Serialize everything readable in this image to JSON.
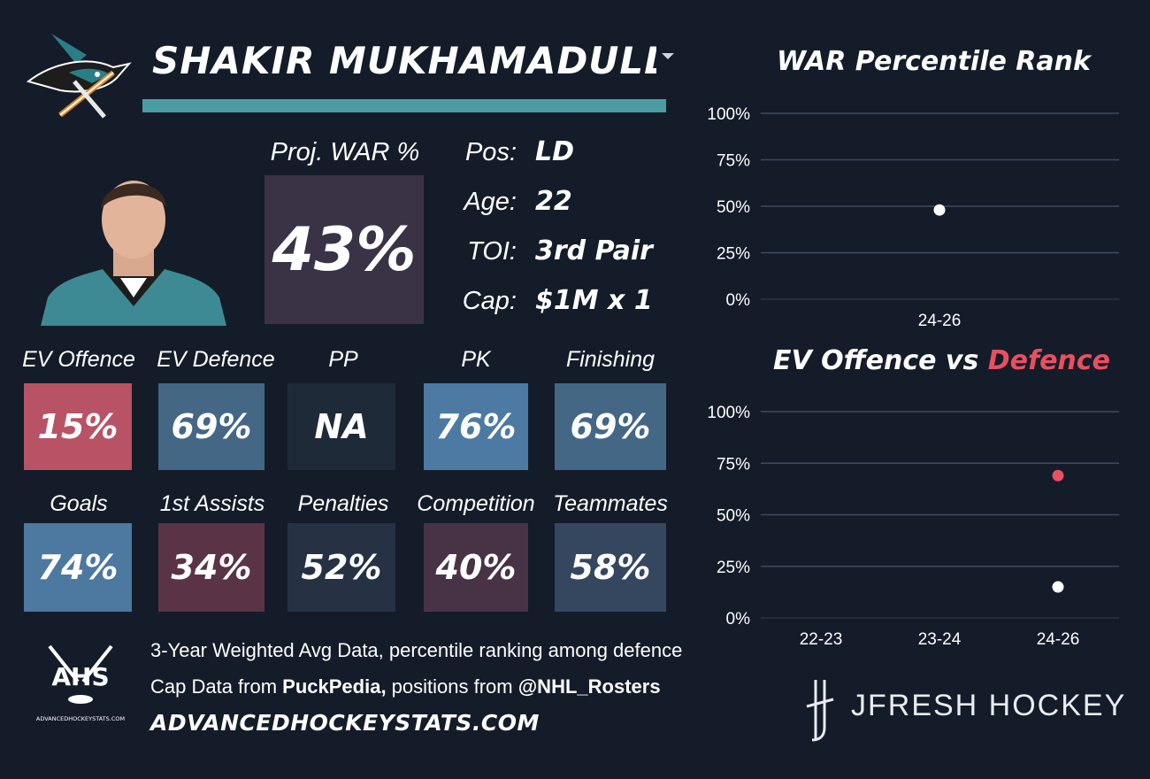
{
  "header": {
    "player_name": "SHAKIR MUKHAMADULLIN"
  },
  "projection": {
    "label": "Proj. WAR %",
    "value": "43%"
  },
  "info": [
    {
      "label": "Pos:",
      "value": "LD"
    },
    {
      "label": "Age:",
      "value": "22"
    },
    {
      "label": "TOI:",
      "value": "3rd Pair"
    },
    {
      "label": "Cap:",
      "value": "$1M x 1"
    }
  ],
  "tiles_row1": [
    {
      "label": "EV Offence",
      "value": "15%",
      "color": "#b85366"
    },
    {
      "label": "EV Defence",
      "value": "69%",
      "color": "#436785"
    },
    {
      "label": "PP",
      "value": "NA",
      "color": "#1f2a38"
    },
    {
      "label": "PK",
      "value": "76%",
      "color": "#4d7aa3"
    },
    {
      "label": "Finishing",
      "value": "69%",
      "color": "#436785"
    }
  ],
  "tiles_row2": [
    {
      "label": "Goals",
      "value": "74%",
      "color": "#4d78a0"
    },
    {
      "label": "1st Assists",
      "value": "34%",
      "color": "#5a3446"
    },
    {
      "label": "Penalties",
      "value": "52%",
      "color": "#263244"
    },
    {
      "label": "Competition",
      "value": "40%",
      "color": "#483346"
    },
    {
      "label": "Teammates",
      "value": "58%",
      "color": "#34475f"
    }
  ],
  "footer": {
    "line1": "3-Year Weighted Avg Data, percentile ranking among defence",
    "line2_prefix": "Cap Data from ",
    "line2_source1": "PuckPedia,",
    "line2_middle": " positions from ",
    "line2_source2": "@NHL_Rosters",
    "site": "ADVANCEDHOCKEYSTATS.COM",
    "ahs_logo_text": "AHS",
    "ahs_logo_subtext": "ADVANCEDHOCKEYSTATS.COM",
    "brand": "JFRESH HOCKEY"
  },
  "chart_titles": {
    "war": "WAR Percentile Rank",
    "ev_part1": "EV Offence vs ",
    "ev_part2": "Defence"
  },
  "colors": {
    "accent_teal": "#4a9da3",
    "defence_red": "#e8505f",
    "offence_white": "#ffffff",
    "background": "#141c29"
  },
  "chart_data": [
    {
      "type": "scatter",
      "title": "WAR Percentile Rank",
      "x": [
        "24-26"
      ],
      "series": [
        {
          "values": [
            48
          ],
          "color": "#ffffff"
        }
      ],
      "yticks": [
        "0%",
        "25%",
        "50%",
        "75%",
        "100%"
      ],
      "ylim": [
        0,
        100
      ],
      "grid": true
    },
    {
      "type": "scatter",
      "title": "EV Offence vs Defence",
      "x": [
        "22-23",
        "23-24",
        "24-26"
      ],
      "series": [
        {
          "name": "EV Offence",
          "values": [
            null,
            null,
            15
          ],
          "color": "#ffffff"
        },
        {
          "name": "Defence",
          "values": [
            null,
            null,
            69
          ],
          "color": "#e8505f"
        }
      ],
      "yticks": [
        "0%",
        "25%",
        "50%",
        "75%",
        "100%"
      ],
      "ylim": [
        0,
        100
      ],
      "grid": true
    }
  ]
}
